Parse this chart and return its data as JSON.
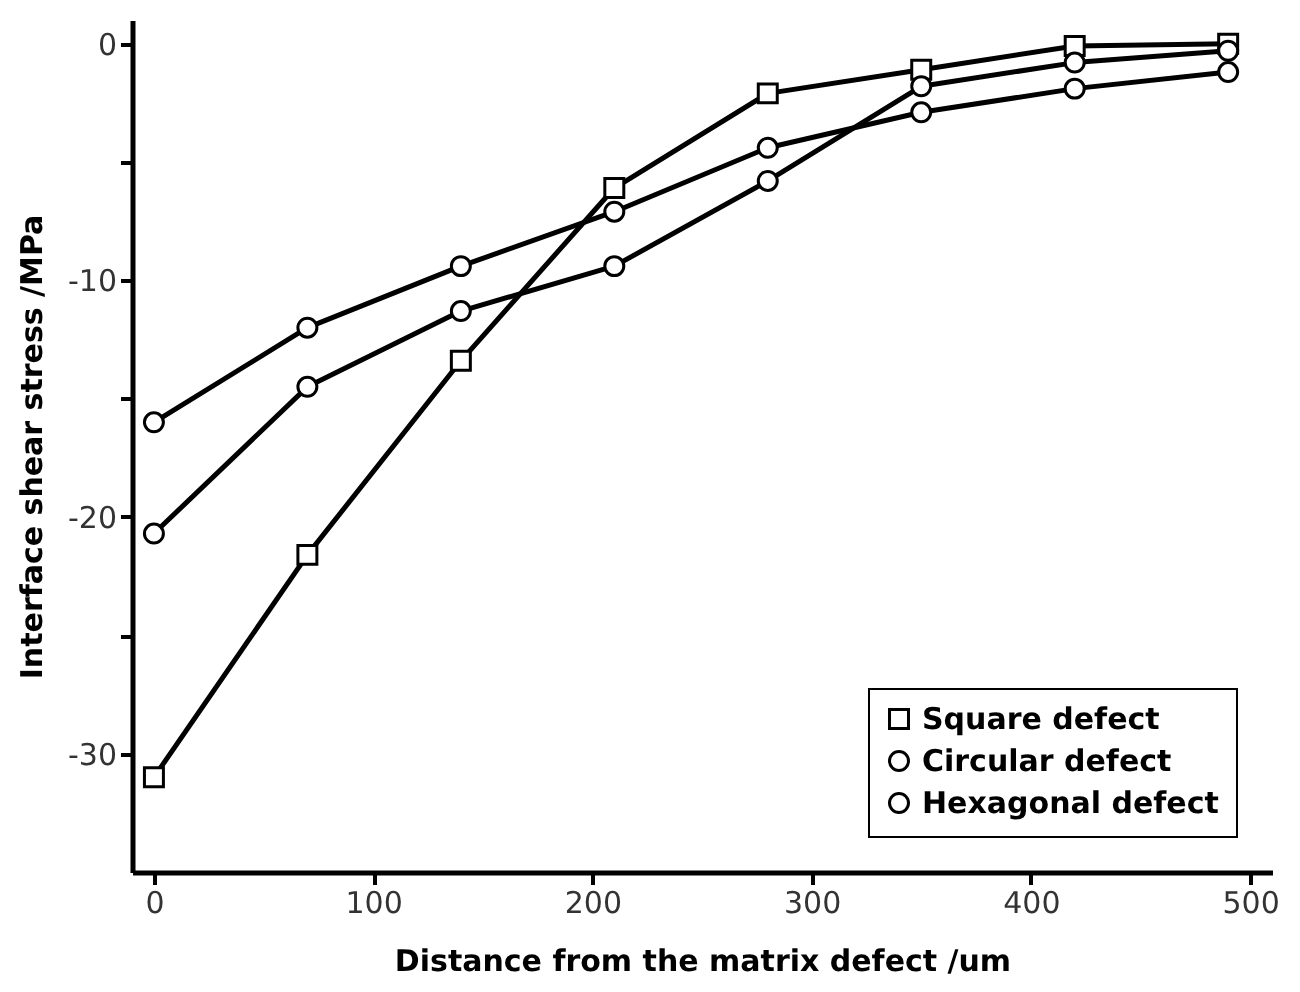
{
  "chart_data": {
    "type": "line",
    "xlabel": "Distance from the matrix defect /um",
    "ylabel": "Interface shear stress /MPa",
    "x": [
      0,
      70,
      140,
      210,
      280,
      350,
      420,
      490
    ],
    "series": [
      {
        "name": "Square defect",
        "color": "#000000",
        "marker": "square",
        "values": [
          -31.0,
          -21.6,
          -13.4,
          -6.1,
          -2.1,
          -1.1,
          -0.1,
          0.0
        ]
      },
      {
        "name": "Circular defect",
        "color": "#000000",
        "marker": "circle",
        "values": [
          -20.7,
          -14.5,
          -11.3,
          -9.4,
          -5.8,
          -1.8,
          -0.8,
          -0.3
        ]
      },
      {
        "name": "Hexagonal defect",
        "color": "#000000",
        "marker": "circle",
        "values": [
          -16.0,
          -12.0,
          -9.4,
          -7.1,
          -4.4,
          -2.9,
          -1.9,
          -1.2
        ]
      }
    ],
    "xlim": [
      -10,
      510
    ],
    "xticks": [
      0,
      100,
      200,
      300,
      400,
      500
    ],
    "ylim": [
      -35,
      1
    ],
    "yticks": [
      0,
      {
        "value": -5,
        "label": null
      },
      -10,
      {
        "value": -15,
        "label": null
      },
      -20,
      {
        "value": -25,
        "label": null
      },
      -30
    ],
    "grid": false,
    "legend": "bottom right",
    "line_style": "solid"
  }
}
